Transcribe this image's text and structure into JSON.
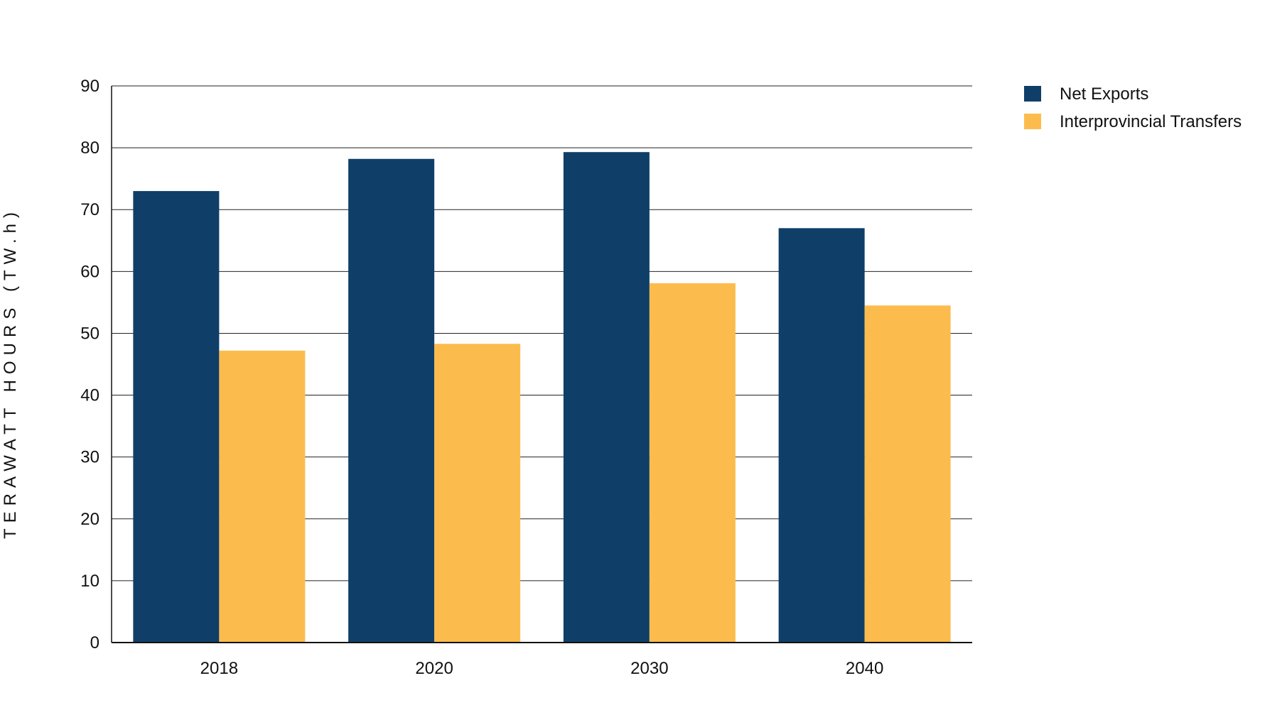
{
  "chart_data": {
    "type": "bar",
    "title": "",
    "xlabel": "",
    "ylabel": "TERAWATT HOURS (TW.h)",
    "categories": [
      "2018",
      "2020",
      "2030",
      "2040"
    ],
    "series": [
      {
        "name": "Net Exports",
        "color": "#0f3f68",
        "values": [
          73,
          78.2,
          79.3,
          67
        ]
      },
      {
        "name": "Interprovincial Transfers",
        "color": "#fcbc4d",
        "values": [
          47.2,
          48.3,
          58.1,
          54.5
        ]
      }
    ],
    "ylim": [
      0,
      90
    ],
    "yticks": [
      0,
      10,
      20,
      30,
      40,
      50,
      60,
      70,
      80,
      90
    ],
    "grid": true,
    "legend_position": "top-right"
  }
}
